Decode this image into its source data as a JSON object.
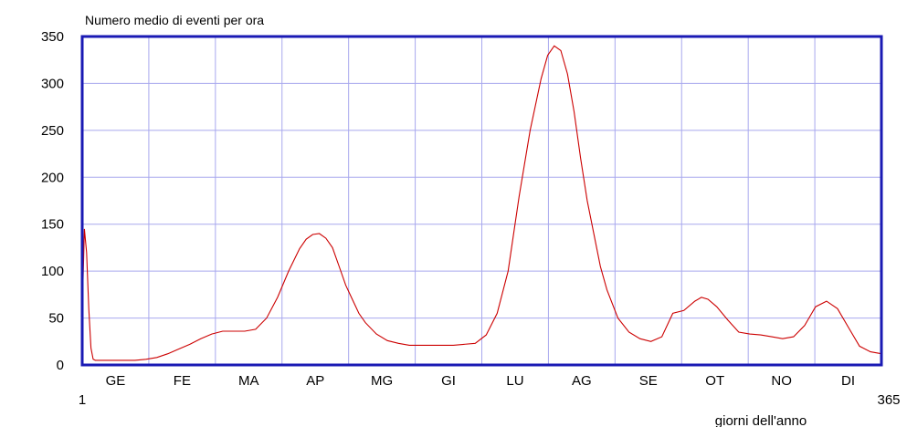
{
  "colors": {
    "frame": "#1a1ab4",
    "grid": "#a8a8ee",
    "line": "#cc0000",
    "text": "#000000"
  },
  "chart_data": {
    "type": "line",
    "title": "Numero medio di eventi per ora",
    "xlabel": "giorni dell'anno",
    "ylabel": "",
    "xlim": [
      1,
      365
    ],
    "ylim": [
      0,
      350
    ],
    "x_end_labels": [
      "1",
      "365"
    ],
    "yticks": [
      0,
      50,
      100,
      150,
      200,
      250,
      300,
      350
    ],
    "month_labels": [
      "GE",
      "FE",
      "MA",
      "AP",
      "MG",
      "GI",
      "LU",
      "AG",
      "SE",
      "OT",
      "NO",
      "DI"
    ],
    "grid": true,
    "legend": "none",
    "series": [
      {
        "x": [
          1,
          2,
          3,
          4,
          5,
          6,
          7,
          8,
          10,
          15,
          20,
          25,
          30,
          35,
          40,
          45,
          50,
          55,
          60,
          65,
          70,
          75,
          80,
          85,
          90,
          95,
          100,
          103,
          106,
          109,
          112,
          115,
          118,
          121,
          124,
          127,
          130,
          135,
          140,
          145,
          150,
          160,
          170,
          180,
          185,
          190,
          195,
          200,
          205,
          210,
          213,
          216,
          219,
          222,
          225,
          228,
          231,
          234,
          237,
          240,
          245,
          250,
          255,
          260,
          265,
          270,
          275,
          280,
          283,
          286,
          290,
          295,
          300,
          305,
          310,
          315,
          320,
          325,
          330,
          335,
          340,
          345,
          350,
          355,
          360,
          365
        ],
        "y": [
          55,
          145,
          120,
          60,
          18,
          6,
          5,
          5,
          5,
          5,
          5,
          5,
          6,
          8,
          12,
          17,
          22,
          28,
          33,
          36,
          36,
          36,
          38,
          50,
          72,
          100,
          124,
          134,
          139,
          140,
          135,
          125,
          105,
          85,
          70,
          55,
          45,
          33,
          26,
          23,
          21,
          21,
          21,
          23,
          32,
          55,
          100,
          180,
          250,
          305,
          330,
          340,
          335,
          310,
          270,
          220,
          175,
          140,
          105,
          80,
          50,
          35,
          28,
          25,
          30,
          55,
          58,
          68,
          72,
          70,
          62,
          48,
          35,
          33,
          32,
          30,
          28,
          30,
          42,
          62,
          68,
          60,
          40,
          20,
          14,
          12
        ]
      }
    ]
  }
}
